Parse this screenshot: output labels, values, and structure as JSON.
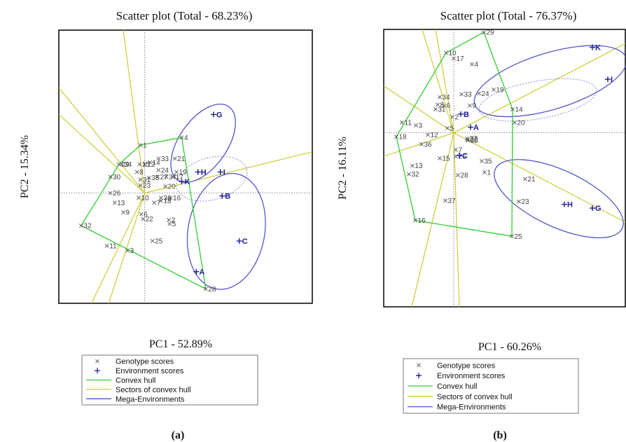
{
  "chart_data": [
    {
      "type": "scatter",
      "title": "Scatter plot (Total - 68.23%)",
      "xlabel": "PC1 - 52.89%",
      "ylabel": "PC2 - 15.34%",
      "sublabel": "(a)",
      "legend": [
        "Genotype scores",
        "Environment scores",
        "Convex hull",
        "Sectors of convex hull",
        "Mega-Environments"
      ],
      "colors": {
        "genotype": "#555555",
        "environment": "#1a1a9a",
        "hull": "#33cc33",
        "sector": "#cccc33",
        "mega": "#5555cc"
      },
      "origin": [
        0,
        0
      ],
      "xlim": [
        -1,
        1.95
      ],
      "ylim": [
        -1.15,
        1.7
      ],
      "genotypes": [
        {
          "label": "1",
          "x": -0.05,
          "y": 0.5
        },
        {
          "label": "2",
          "x": 0.28,
          "y": -0.28
        },
        {
          "label": "3",
          "x": -0.2,
          "y": -0.6
        },
        {
          "label": "4",
          "x": 0.43,
          "y": 0.58
        },
        {
          "label": "5",
          "x": 0.29,
          "y": -0.32
        },
        {
          "label": "6",
          "x": -0.04,
          "y": -0.22
        },
        {
          "label": "7",
          "x": 0.11,
          "y": -0.1
        },
        {
          "label": "8",
          "x": -0.09,
          "y": 0.22
        },
        {
          "label": "9",
          "x": -0.25,
          "y": -0.2
        },
        {
          "label": "10",
          "x": -0.07,
          "y": -0.05
        },
        {
          "label": "11",
          "x": -0.44,
          "y": -0.55
        },
        {
          "label": "12",
          "x": 0.0,
          "y": 0.3
        },
        {
          "label": "13",
          "x": -0.35,
          "y": -0.1
        },
        {
          "label": "14",
          "x": 0.06,
          "y": 0.32
        },
        {
          "label": "15",
          "x": -0.06,
          "y": 0.3
        },
        {
          "label": "16",
          "x": 0.3,
          "y": -0.05
        },
        {
          "label": "17",
          "x": 0.33,
          "y": 0.17
        },
        {
          "label": "18",
          "x": 0.19,
          "y": -0.08
        },
        {
          "label": "19",
          "x": 0.37,
          "y": 0.22
        },
        {
          "label": "20",
          "x": 0.24,
          "y": 0.07
        },
        {
          "label": "21",
          "x": 0.35,
          "y": 0.36
        },
        {
          "label": "22",
          "x": -0.02,
          "y": -0.27
        },
        {
          "label": "23",
          "x": -0.05,
          "y": 0.08
        },
        {
          "label": "24",
          "x": 0.16,
          "y": 0.24
        },
        {
          "label": "25",
          "x": 0.09,
          "y": -0.5
        },
        {
          "label": "26",
          "x": -0.4,
          "y": 0.0
        },
        {
          "label": "27",
          "x": 0.15,
          "y": 0.17
        },
        {
          "label": "28",
          "x": 0.71,
          "y": -1.0
        },
        {
          "label": "29",
          "x": -0.3,
          "y": 0.3
        },
        {
          "label": "30",
          "x": -0.4,
          "y": 0.17
        },
        {
          "label": "31",
          "x": -0.05,
          "y": 0.14
        },
        {
          "label": "32",
          "x": -0.74,
          "y": -0.34
        },
        {
          "label": "33",
          "x": 0.16,
          "y": 0.36
        },
        {
          "label": "34",
          "x": -0.27,
          "y": 0.3
        },
        {
          "label": "35",
          "x": 0.05,
          "y": 0.16
        },
        {
          "label": "36",
          "x": 0.19,
          "y": -0.05
        },
        {
          "label": "37",
          "x": 0.25,
          "y": 0.17
        }
      ],
      "environments": [
        {
          "label": "A",
          "x": 0.6,
          "y": -0.82
        },
        {
          "label": "B",
          "x": 0.9,
          "y": -0.03
        },
        {
          "label": "C",
          "x": 1.1,
          "y": -0.5
        },
        {
          "label": "G",
          "x": 0.8,
          "y": 0.82
        },
        {
          "label": "H",
          "x": 0.62,
          "y": 0.22
        },
        {
          "label": "I",
          "x": 0.88,
          "y": 0.22
        },
        {
          "label": "K",
          "x": 0.43,
          "y": 0.12
        }
      ],
      "hull": [
        "1",
        "4",
        "28",
        "32",
        "29"
      ],
      "sectors": [
        [
          -0.25,
          1.7
        ],
        [
          -1,
          0.82
        ],
        [
          -1,
          1.1
        ],
        [
          -0.62,
          -1.15
        ],
        [
          -0.42,
          -1.15
        ],
        [
          1.95,
          0.43
        ]
      ],
      "mega_environments": [
        {
          "shape": "ellipse",
          "cx": 0.68,
          "cy": 0.52,
          "rx": 0.52,
          "ry": 0.25,
          "rot": -55,
          "dashed": false
        },
        {
          "shape": "ellipse",
          "cx": 0.95,
          "cy": -0.4,
          "rx": 0.68,
          "ry": 0.4,
          "rot": -80,
          "dashed": false
        },
        {
          "shape": "ellipse",
          "cx": 0.78,
          "cy": 0.15,
          "rx": 0.42,
          "ry": 0.22,
          "rot": -15,
          "dashed": true
        }
      ]
    },
    {
      "type": "scatter",
      "title": "Scatter plot (Total - 76.37%)",
      "xlabel": "PC1 - 60.26%",
      "ylabel": "PC2 - 16.11%",
      "sublabel": "(b)",
      "legend": [
        "Genotype scores",
        "Environment scores",
        "Convex hull",
        "Sectors of convex hull",
        "Mega-Environments"
      ],
      "colors": {
        "genotype": "#555555",
        "environment": "#1a1a9a",
        "hull": "#33cc33",
        "sector": "#cccc33",
        "mega": "#5555cc"
      },
      "origin": [
        0,
        0
      ],
      "xlim": [
        -1,
        2.45
      ],
      "ylim": [
        -1.85,
        1.1
      ],
      "genotypes": [
        {
          "label": "1",
          "x": 0.44,
          "y": -0.42
        },
        {
          "label": "2",
          "x": -0.02,
          "y": 0.17
        },
        {
          "label": "3",
          "x": -0.54,
          "y": 0.08
        },
        {
          "label": "4",
          "x": 0.26,
          "y": 0.73
        },
        {
          "label": "5",
          "x": -0.09,
          "y": 0.05
        },
        {
          "label": "6",
          "x": -0.14,
          "y": 0.29
        },
        {
          "label": "7",
          "x": 0.03,
          "y": -0.18
        },
        {
          "label": "8",
          "x": -0.23,
          "y": 0.3
        },
        {
          "label": "9",
          "x": 0.23,
          "y": 0.29
        },
        {
          "label": "10",
          "x": -0.11,
          "y": 0.85
        },
        {
          "label": "11",
          "x": -0.74,
          "y": 0.11
        },
        {
          "label": "12",
          "x": -0.37,
          "y": -0.02
        },
        {
          "label": "13",
          "x": -0.59,
          "y": -0.35
        },
        {
          "label": "14",
          "x": 0.84,
          "y": 0.25
        },
        {
          "label": "15",
          "x": -0.2,
          "y": -0.27
        },
        {
          "label": "16",
          "x": -0.55,
          "y": -0.93
        },
        {
          "label": "17",
          "x": 0.0,
          "y": 0.79
        },
        {
          "label": "18",
          "x": -0.82,
          "y": -0.04
        },
        {
          "label": "19",
          "x": 0.57,
          "y": 0.46
        },
        {
          "label": "20",
          "x": 0.87,
          "y": 0.11
        },
        {
          "label": "21",
          "x": 1.02,
          "y": -0.49
        },
        {
          "label": "22",
          "x": 0.2,
          "y": -0.07
        },
        {
          "label": "23",
          "x": 0.93,
          "y": -0.73
        },
        {
          "label": "24",
          "x": 0.36,
          "y": 0.42
        },
        {
          "label": "25",
          "x": 0.83,
          "y": -1.1
        },
        {
          "label": "26",
          "x": 0.03,
          "y": -0.25
        },
        {
          "label": "27",
          "x": 0.19,
          "y": -0.06
        },
        {
          "label": "28",
          "x": 0.06,
          "y": -0.45
        },
        {
          "label": "29",
          "x": 0.43,
          "y": 1.07
        },
        {
          "label": "30",
          "x": 0.2,
          "y": -0.08
        },
        {
          "label": "31",
          "x": -0.26,
          "y": 0.25
        },
        {
          "label": "32",
          "x": -0.64,
          "y": -0.44
        },
        {
          "label": "33",
          "x": 0.11,
          "y": 0.41
        },
        {
          "label": "34",
          "x": -0.2,
          "y": 0.38
        },
        {
          "label": "35",
          "x": 0.4,
          "y": -0.3
        },
        {
          "label": "36",
          "x": -0.46,
          "y": -0.12
        },
        {
          "label": "37",
          "x": -0.12,
          "y": -0.72
        }
      ],
      "environments": [
        {
          "label": "A",
          "x": 0.24,
          "y": 0.06
        },
        {
          "label": "B",
          "x": 0.1,
          "y": 0.2
        },
        {
          "label": "C",
          "x": 0.08,
          "y": -0.24
        },
        {
          "label": "G",
          "x": 1.98,
          "y": -0.8
        },
        {
          "label": "H",
          "x": 1.58,
          "y": -0.76
        },
        {
          "label": "I",
          "x": 2.2,
          "y": 0.57
        },
        {
          "label": "K",
          "x": 1.98,
          "y": 0.91
        }
      ],
      "hull": [
        "10",
        "29",
        "14",
        "25",
        "16",
        "18"
      ],
      "sectors": [
        [
          -0.45,
          1.1
        ],
        [
          -0.26,
          1.1
        ],
        [
          -1,
          0.5
        ],
        [
          -1,
          -0.25
        ],
        [
          -0.6,
          -1.85
        ],
        [
          0.08,
          -1.85
        ],
        [
          2.45,
          0.95
        ],
        [
          2.45,
          -0.95
        ]
      ],
      "mega_environments": [
        {
          "shape": "ellipse",
          "cx": 1.38,
          "cy": 0.55,
          "rx": 1.13,
          "ry": 0.3,
          "rot": -17,
          "dashed": false
        },
        {
          "shape": "ellipse",
          "cx": 1.5,
          "cy": -0.7,
          "rx": 1.0,
          "ry": 0.3,
          "rot": 25,
          "dashed": false
        },
        {
          "shape": "ellipse",
          "cx": 1.2,
          "cy": 0.35,
          "rx": 0.85,
          "ry": 0.2,
          "rot": -10,
          "dashed": true
        }
      ]
    }
  ]
}
